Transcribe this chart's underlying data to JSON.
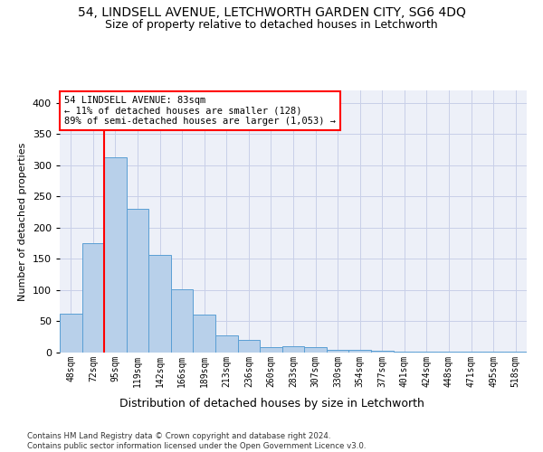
{
  "title": "54, LINDSELL AVENUE, LETCHWORTH GARDEN CITY, SG6 4DQ",
  "subtitle": "Size of property relative to detached houses in Letchworth",
  "xlabel": "Distribution of detached houses by size in Letchworth",
  "ylabel": "Number of detached properties",
  "bar_color": "#b8d0ea",
  "bar_edge_color": "#5a9fd4",
  "categories": [
    "48sqm",
    "72sqm",
    "95sqm",
    "119sqm",
    "142sqm",
    "166sqm",
    "189sqm",
    "213sqm",
    "236sqm",
    "260sqm",
    "283sqm",
    "307sqm",
    "330sqm",
    "354sqm",
    "377sqm",
    "401sqm",
    "424sqm",
    "448sqm",
    "471sqm",
    "495sqm",
    "518sqm"
  ],
  "values": [
    62,
    175,
    313,
    231,
    156,
    101,
    61,
    28,
    21,
    9,
    10,
    8,
    5,
    4,
    3,
    2,
    2,
    1,
    1,
    2,
    1
  ],
  "vline_x": 1.5,
  "annotation_text": "54 LINDSELL AVENUE: 83sqm\n← 11% of detached houses are smaller (128)\n89% of semi-detached houses are larger (1,053) →",
  "annotation_box_color": "white",
  "annotation_box_edge_color": "red",
  "ylim": [
    0,
    420
  ],
  "yticks": [
    0,
    50,
    100,
    150,
    200,
    250,
    300,
    350,
    400
  ],
  "background_color": "#edf0f8",
  "grid_color": "#c8cfe8",
  "footer_line1": "Contains HM Land Registry data © Crown copyright and database right 2024.",
  "footer_line2": "Contains public sector information licensed under the Open Government Licence v3.0.",
  "title_fontsize": 10,
  "subtitle_fontsize": 9
}
